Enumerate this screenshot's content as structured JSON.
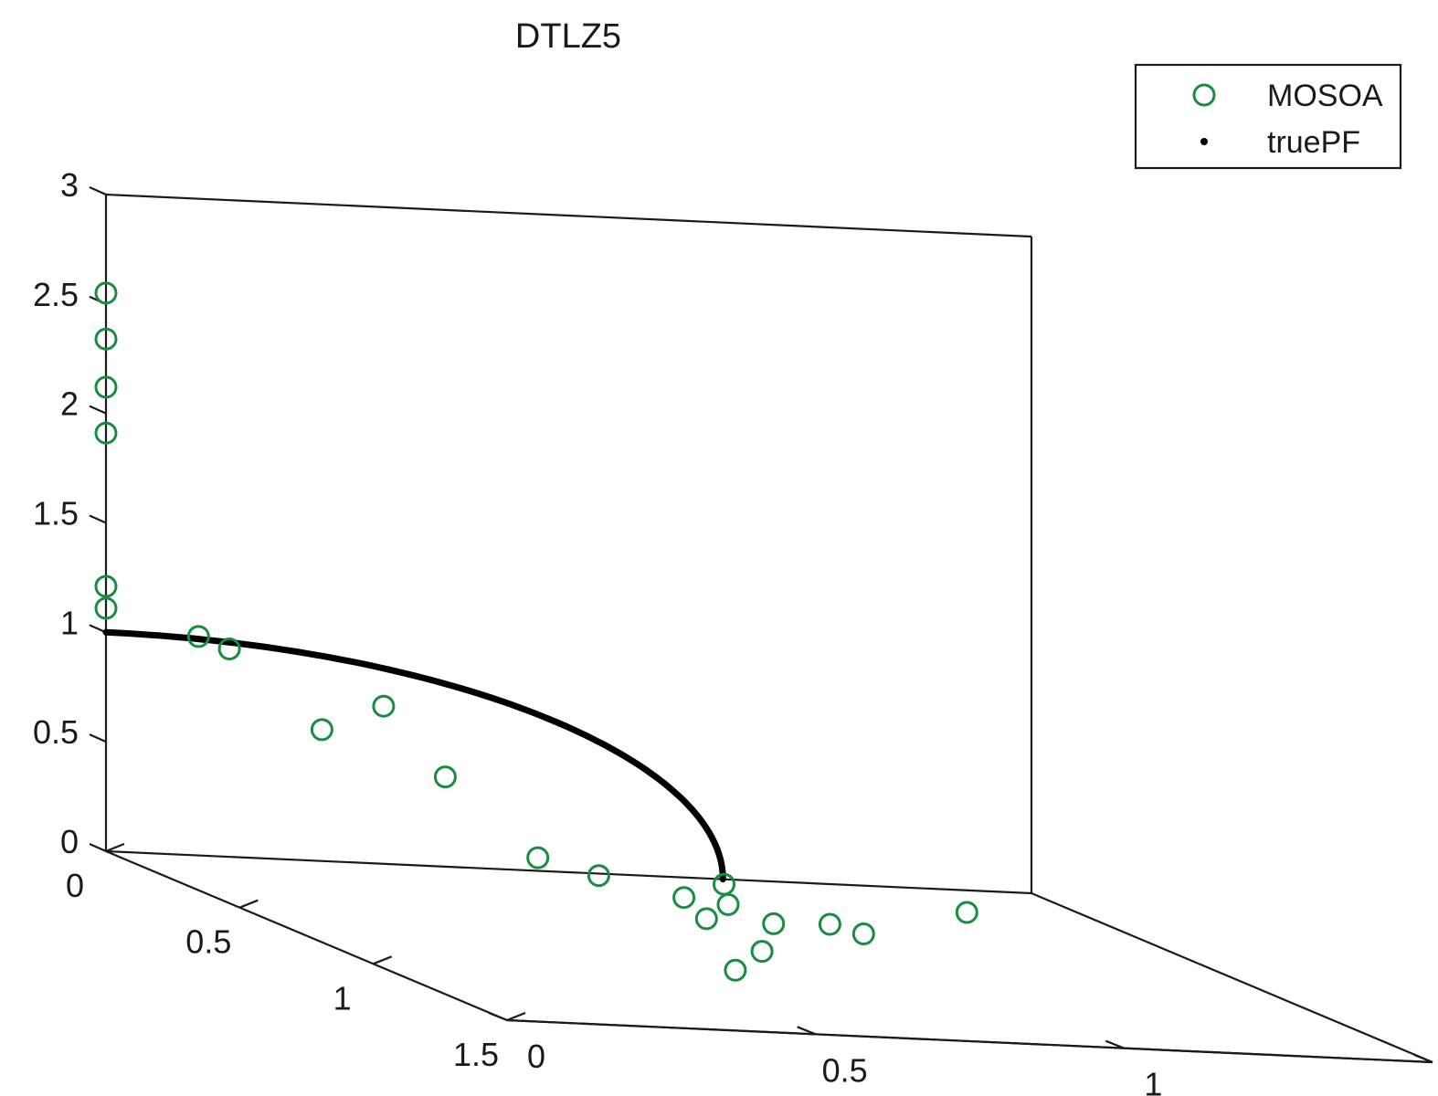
{
  "chart_data": {
    "type": "scatter",
    "dimensions": 3,
    "title": "DTLZ5",
    "xlabel": "",
    "ylabel": "",
    "zlabel": "",
    "xlim": [
      0,
      1.5
    ],
    "ylim": [
      0,
      1.5
    ],
    "zlim": [
      0,
      3
    ],
    "x_ticks": [
      "0",
      "0.5",
      "1",
      "1.5"
    ],
    "y_ticks": [
      "0",
      "0.5",
      "1",
      "1.5"
    ],
    "z_ticks": [
      "0",
      "0.5",
      "1",
      "1.5",
      "2",
      "2.5",
      "3"
    ],
    "grid": false,
    "legend_position": "top-right",
    "series": [
      {
        "name": "MOSOA",
        "marker": "circle-open",
        "color": "#1a8c3f",
        "points": [
          [
            0.0,
            0.0,
            2.55
          ],
          [
            0.0,
            0.0,
            2.34
          ],
          [
            0.0,
            0.0,
            2.12
          ],
          [
            0.0,
            0.0,
            1.91
          ],
          [
            0.0,
            0.0,
            1.21
          ],
          [
            0.0,
            0.0,
            1.11
          ],
          [
            0.0,
            0.15,
            1.0
          ],
          [
            0.0,
            0.2,
            0.95
          ],
          [
            0.0,
            0.45,
            0.72
          ],
          [
            0.0,
            0.35,
            0.6
          ],
          [
            0.0,
            0.55,
            0.41
          ],
          [
            0.0,
            0.7,
            0.06
          ],
          [
            0.02,
            0.79,
            0.0
          ],
          [
            0.2,
            0.85,
            0.0
          ],
          [
            0.05,
            0.98,
            0.0
          ],
          [
            0.25,
            0.9,
            0.0
          ],
          [
            0.4,
            0.8,
            0.0
          ],
          [
            0.4,
            1.0,
            0.0
          ],
          [
            0.42,
            0.9,
            0.0
          ],
          [
            0.48,
            1.02,
            0.0
          ],
          [
            0.22,
            1.3,
            0.0
          ],
          [
            0.7,
            0.76,
            0.0
          ],
          [
            0.9,
            0.63,
            0.0
          ]
        ]
      },
      {
        "name": "truePF",
        "marker": "dot",
        "color": "#000000",
        "description": "quarter circle x=0, y=cos(t), z=sin(t)",
        "parametric": {
          "t_start_deg": 0,
          "t_end_deg": 90,
          "radius": 1
        }
      }
    ]
  }
}
